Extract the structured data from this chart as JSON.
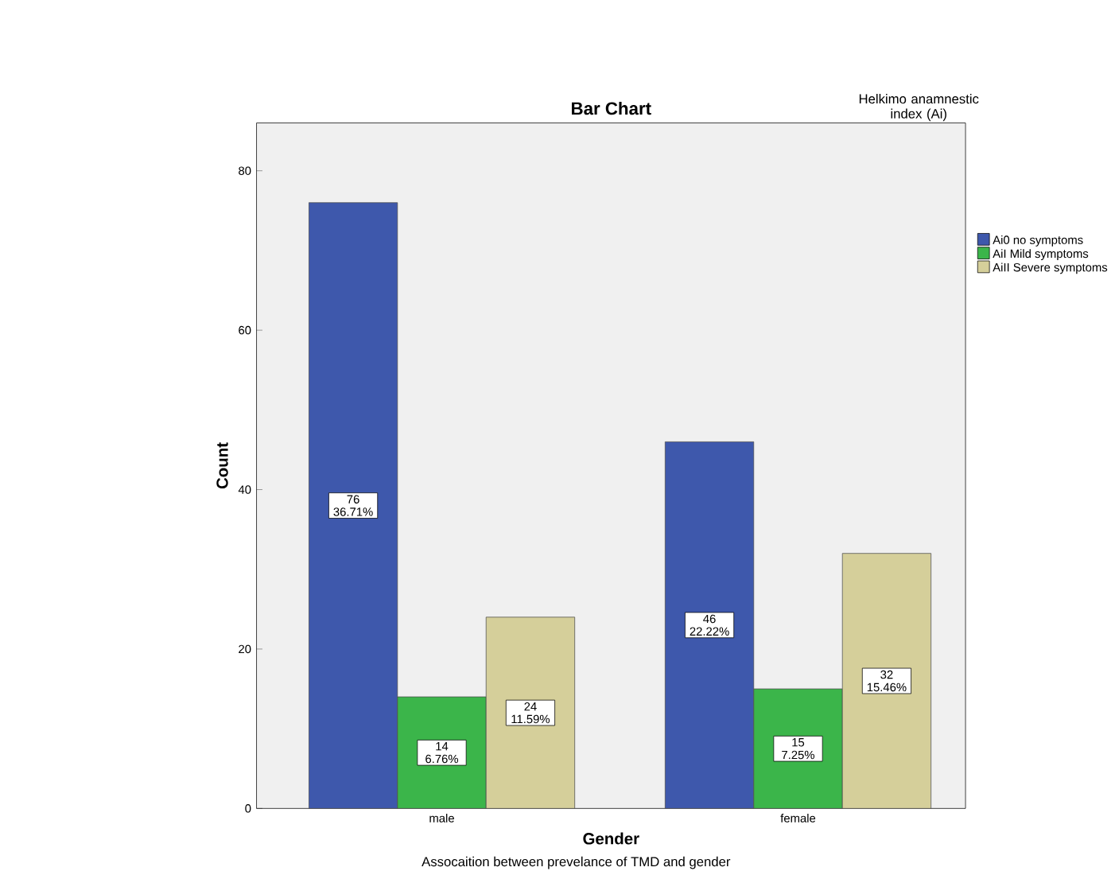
{
  "chart_data": {
    "type": "bar",
    "title": "Bar Chart",
    "xlabel": "Gender",
    "ylabel": "Count",
    "legend_title": "Helkimo anamnestic index (Ai)",
    "categories": [
      "male",
      "female"
    ],
    "series": [
      {
        "name": "Ai0 no symptoms",
        "color": "#3e58ac",
        "values": [
          76,
          46
        ],
        "value_labels": [
          "76 36.71%",
          "46 22.22%"
        ]
      },
      {
        "name": "AiI Mild symptoms",
        "color": "#3bb54a",
        "values": [
          14,
          15
        ],
        "value_labels": [
          "14 6.76%",
          "15 7.25%"
        ]
      },
      {
        "name": "AiII Severe symptoms",
        "color": "#d5cf9a",
        "values": [
          24,
          32
        ],
        "value_labels": [
          "24 11.59%",
          "32 15.46%"
        ]
      }
    ],
    "ylim": [
      0,
      86
    ],
    "yticks": [
      0,
      20,
      40,
      60,
      80
    ],
    "grid": false,
    "legend": "right",
    "annotations": [
      "Assocaition between prevelance of TMD and gender"
    ]
  }
}
